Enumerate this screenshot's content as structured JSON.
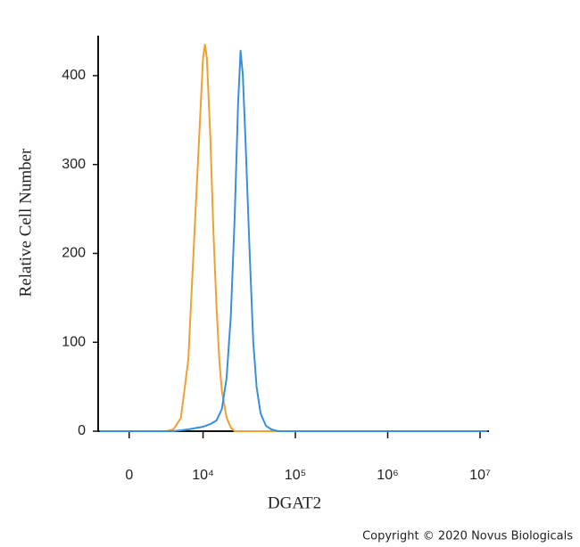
{
  "chart_data": {
    "type": "line",
    "x_label": "DGAT2",
    "y_label": "Relative Cell Number",
    "copyright": "Copyright © 2020 Novus Biologicals",
    "xscale": "biexponential",
    "xlim": [
      -4200,
      12500000
    ],
    "xticks": [
      0,
      {
        "value": 10000,
        "label": "10⁴"
      },
      {
        "value": 100000,
        "label": "10⁵"
      },
      {
        "value": 1000000,
        "label": "10⁶"
      },
      {
        "value": 10000000,
        "label": "10⁷"
      }
    ],
    "ylim": [
      0,
      445
    ],
    "yticks": [
      0,
      100,
      200,
      300,
      400
    ],
    "series": [
      {
        "color": "#f0a030",
        "x": [
          -4000,
          4000,
          5000,
          6000,
          7000,
          8000,
          9000,
          10000,
          10500,
          11000,
          12000,
          13000,
          14000,
          15000,
          16000,
          18000,
          20000,
          22000,
          12000000
        ],
        "values": [
          0,
          0,
          0,
          2,
          15,
          80,
          250,
          420,
          435,
          420,
          330,
          220,
          140,
          80,
          45,
          15,
          4,
          0,
          0
        ]
      },
      {
        "color": "#3a8fd8",
        "x": [
          -4000,
          6000,
          8000,
          10000,
          12000,
          14000,
          16000,
          18000,
          20000,
          22000,
          24000,
          25500,
          27000,
          29000,
          32000,
          35000,
          38000,
          42000,
          48000,
          55000,
          65000,
          12000000
        ],
        "values": [
          0,
          0,
          2,
          5,
          8,
          12,
          25,
          60,
          130,
          240,
          370,
          428,
          400,
          320,
          200,
          100,
          50,
          20,
          6,
          2,
          0,
          0
        ]
      }
    ]
  }
}
